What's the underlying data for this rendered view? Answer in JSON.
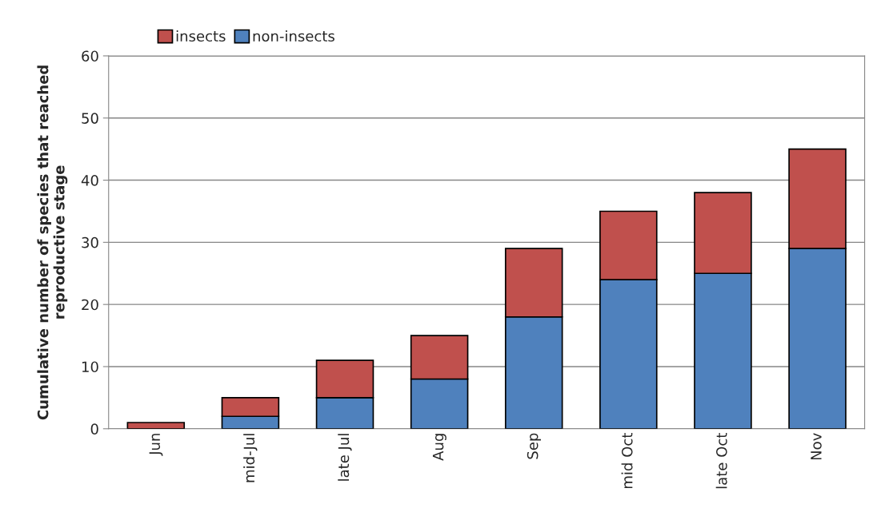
{
  "chart_data": {
    "type": "bar",
    "stacked": true,
    "ylabel": "Cumulative number of species that reached\nreproductive stage",
    "categories": [
      "Jun",
      "mid-Jul",
      "late Jul",
      "Aug",
      "Sep",
      "mid Oct",
      "late Oct",
      "Nov"
    ],
    "series": [
      {
        "name": "non-insects",
        "color": "#4f81bd",
        "values": [
          0,
          2,
          5,
          8,
          18,
          24,
          25,
          29
        ]
      },
      {
        "name": "insects",
        "color": "#c0504d",
        "values": [
          1,
          3,
          6,
          7,
          11,
          11,
          13,
          16
        ]
      }
    ],
    "ylim": [
      0,
      60
    ],
    "yticks": [
      0,
      10,
      20,
      30,
      40,
      50,
      60
    ],
    "grid": "y",
    "legend": "top"
  }
}
